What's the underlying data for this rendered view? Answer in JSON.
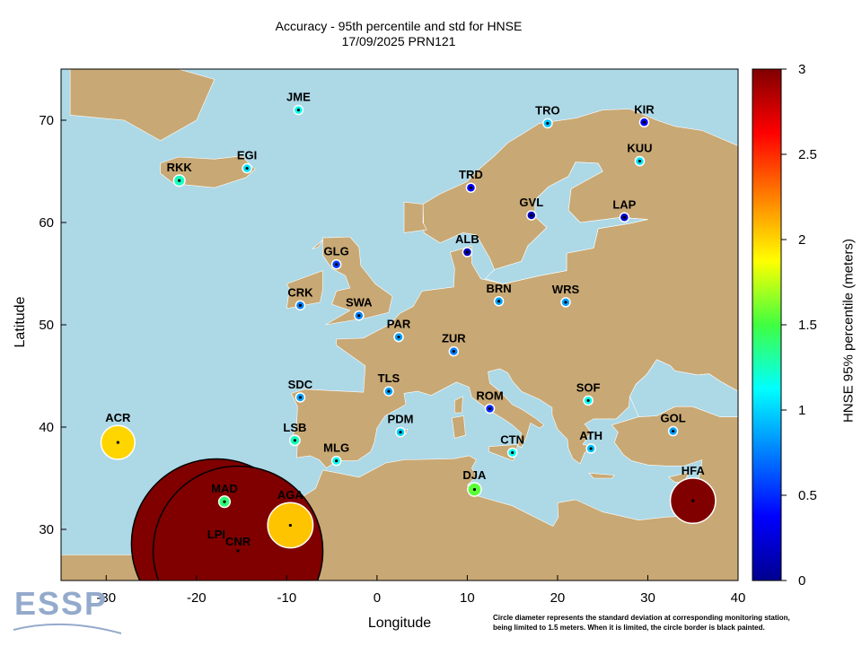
{
  "title_line1": "Accuracy - 95th percentile and std for HNSE",
  "title_line2": "17/09/2025 PRN121",
  "xlabel": "Longitude",
  "ylabel": "Latitude",
  "colorbar_label": "HNSE 95% percentile (meters)",
  "logo_text": "ESSP",
  "footnote_line1": "Circle diameter represents the standard deviation at corresponding monitoring station,",
  "footnote_line2": "being limited to 1.5 meters. When it is limited, the circle border is black painted.",
  "colors": {
    "sea": "#add8e6",
    "land": "#c8a874",
    "border": "#ffffff"
  },
  "chart_data": {
    "type": "scatter",
    "xlim": [
      -35,
      40
    ],
    "ylim": [
      25,
      75
    ],
    "x_ticks": [
      -30,
      -20,
      -10,
      0,
      10,
      20,
      30,
      40
    ],
    "y_ticks": [
      30,
      40,
      50,
      60,
      70
    ],
    "colorbar": {
      "min": 0,
      "max": 3,
      "ticks": [
        0,
        0.5,
        1,
        1.5,
        2,
        2.5,
        3
      ],
      "colormap": "jet"
    },
    "stations": [
      {
        "name": "JME",
        "lon": -8.7,
        "lat": 71.0,
        "p95": 1.15,
        "std": 0.08
      },
      {
        "name": "TRO",
        "lon": 18.9,
        "lat": 69.7,
        "p95": 0.95,
        "std": 0.08
      },
      {
        "name": "KIR",
        "lon": 29.6,
        "lat": 69.8,
        "p95": 0.35,
        "std": 0.04
      },
      {
        "name": "KUU",
        "lon": 29.1,
        "lat": 66.0,
        "p95": 1.05,
        "std": 0.08
      },
      {
        "name": "RKK",
        "lon": -21.9,
        "lat": 64.1,
        "p95": 1.25,
        "std": 0.1
      },
      {
        "name": "EGI",
        "lon": -14.4,
        "lat": 65.3,
        "p95": 1.05,
        "std": 0.08
      },
      {
        "name": "TRD",
        "lon": 10.4,
        "lat": 63.4,
        "p95": 0.35,
        "std": 0.04
      },
      {
        "name": "GVL",
        "lon": 17.1,
        "lat": 60.7,
        "p95": 0.15,
        "std": 0.02
      },
      {
        "name": "LAP",
        "lon": 27.4,
        "lat": 60.5,
        "p95": 0.2,
        "std": 0.04
      },
      {
        "name": "ALB",
        "lon": 10.0,
        "lat": 57.1,
        "p95": 0.15,
        "std": 0.02
      },
      {
        "name": "GLG",
        "lon": -4.5,
        "lat": 55.9,
        "p95": 0.55,
        "std": 0.06
      },
      {
        "name": "CRK",
        "lon": -8.5,
        "lat": 51.9,
        "p95": 0.75,
        "std": 0.06
      },
      {
        "name": "SWA",
        "lon": -2.0,
        "lat": 50.9,
        "p95": 0.75,
        "std": 0.06
      },
      {
        "name": "BRN",
        "lon": 13.5,
        "lat": 52.3,
        "p95": 0.85,
        "std": 0.07
      },
      {
        "name": "WRS",
        "lon": 20.9,
        "lat": 52.2,
        "p95": 0.85,
        "std": 0.07
      },
      {
        "name": "PAR",
        "lon": 2.4,
        "lat": 48.8,
        "p95": 0.85,
        "std": 0.07
      },
      {
        "name": "ZUR",
        "lon": 8.5,
        "lat": 47.4,
        "p95": 0.75,
        "std": 0.06
      },
      {
        "name": "TLS",
        "lon": 1.3,
        "lat": 43.5,
        "p95": 0.85,
        "std": 0.06
      },
      {
        "name": "SDC",
        "lon": -8.5,
        "lat": 42.9,
        "p95": 0.85,
        "std": 0.06
      },
      {
        "name": "ROM",
        "lon": 12.5,
        "lat": 41.8,
        "p95": 0.5,
        "std": 0.05
      },
      {
        "name": "SOF",
        "lon": 23.4,
        "lat": 42.6,
        "p95": 1.15,
        "std": 0.08
      },
      {
        "name": "GOL",
        "lon": 32.8,
        "lat": 39.6,
        "p95": 0.85,
        "std": 0.07
      },
      {
        "name": "ACR",
        "lon": -28.7,
        "lat": 38.5,
        "p95": 2.0,
        "std": 0.3
      },
      {
        "name": "LSB",
        "lon": -9.1,
        "lat": 38.7,
        "p95": 1.25,
        "std": 0.09
      },
      {
        "name": "PDM",
        "lon": 2.6,
        "lat": 39.5,
        "p95": 1.0,
        "std": 0.08
      },
      {
        "name": "MLG",
        "lon": -4.5,
        "lat": 36.7,
        "p95": 1.15,
        "std": 0.08
      },
      {
        "name": "CTN",
        "lon": 15.0,
        "lat": 37.5,
        "p95": 1.15,
        "std": 0.08
      },
      {
        "name": "ATH",
        "lon": 23.7,
        "lat": 37.9,
        "p95": 0.95,
        "std": 0.07
      },
      {
        "name": "DJA",
        "lon": 10.8,
        "lat": 33.9,
        "p95": 1.55,
        "std": 0.12
      },
      {
        "name": "HFA",
        "lon": 35.0,
        "lat": 32.8,
        "p95": 3.0,
        "std": 0.4
      },
      {
        "name": "MAD",
        "lon": -16.9,
        "lat": 32.7,
        "p95": 1.4,
        "std": 0.1
      },
      {
        "name": "AGA",
        "lon": -9.6,
        "lat": 30.4,
        "p95": 2.05,
        "std": 0.4
      },
      {
        "name": "LPI",
        "lon": -17.8,
        "lat": 28.6,
        "p95": 3.0,
        "std": 1.5
      },
      {
        "name": "CNR",
        "lon": -15.4,
        "lat": 27.9,
        "p95": 3.0,
        "std": 1.5
      }
    ]
  }
}
